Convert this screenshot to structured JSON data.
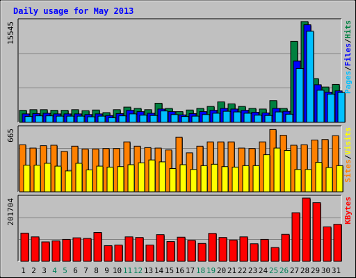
{
  "chart_data": {
    "type": "bar",
    "title": "Daily usage for May 2013",
    "categories": [
      "1",
      "2",
      "3",
      "4",
      "5",
      "6",
      "7",
      "8",
      "9",
      "10",
      "11",
      "12",
      "13",
      "14",
      "15",
      "16",
      "17",
      "18",
      "19",
      "20",
      "21",
      "22",
      "23",
      "24",
      "25",
      "26",
      "27",
      "28",
      "29",
      "30",
      "31"
    ],
    "weekend_days": [
      "4",
      "5",
      "11",
      "12",
      "18",
      "19",
      "25",
      "26"
    ],
    "panels": [
      {
        "id": "hits",
        "ymax_label": "15545",
        "ymax": 15545,
        "series": [
          {
            "name": "Hits",
            "color": "#008040",
            "values": [
              1850,
              1950,
              1950,
              1850,
              1850,
              1950,
              1800,
              1900,
              1500,
              1950,
              2350,
              2150,
              1950,
              2950,
              2150,
              1650,
              1900,
              2150,
              2450,
              3150,
              2850,
              2450,
              2150,
              2050,
              3350,
              2150,
              12500,
              15545,
              6750,
              5450,
              5850
            ]
          },
          {
            "name": "Files",
            "color": "#0000ff",
            "values": [
              1300,
              1350,
              1400,
              1300,
              1300,
              1300,
              1200,
              1300,
              1050,
              1350,
              1850,
              1650,
              1400,
              2050,
              1650,
              1150,
              1350,
              1650,
              1850,
              2150,
              2050,
              1850,
              1550,
              1450,
              2150,
              1700,
              9450,
              15050,
              5800,
              4650,
              4850
            ]
          },
          {
            "name": "Pages",
            "color": "#00c0ff",
            "values": [
              900,
              1000,
              1000,
              950,
              950,
              950,
              850,
              950,
              700,
              1000,
              1300,
              1100,
              1050,
              1750,
              1200,
              900,
              950,
              1200,
              1400,
              1700,
              1600,
              1400,
              1100,
              1050,
              1600,
              1250,
              8300,
              14050,
              4950,
              4350,
              4600
            ]
          }
        ],
        "legend": [
          "Pages",
          "/",
          "Files",
          "/",
          "Hits"
        ]
      },
      {
        "id": "visits",
        "ymax_label": "665",
        "ymax": 665,
        "series": [
          {
            "name": "Sites",
            "color": "#ff8000",
            "values": [
              495,
              460,
              485,
              490,
              425,
              480,
              450,
              450,
              455,
              455,
              525,
              480,
              465,
              460,
              440,
              575,
              410,
              480,
              525,
              525,
              525,
              460,
              455,
              525,
              655,
              595,
              490,
              495,
              545,
              550,
              590
            ]
          },
          {
            "name": "Visits",
            "color": "#ffff00",
            "values": [
              280,
              280,
              300,
              270,
              220,
              300,
              230,
              270,
              260,
              265,
              285,
              305,
              335,
              315,
              245,
              285,
              235,
              275,
              290,
              265,
              260,
              275,
              275,
              390,
              460,
              435,
              235,
              235,
              310,
              255,
              275
            ]
          }
        ],
        "legend": [
          "Sites",
          "/",
          "Visits"
        ]
      },
      {
        "id": "kbytes",
        "ymax_label": "201704",
        "ymax": 201704,
        "series": [
          {
            "name": "KBytes",
            "color": "#ff0000",
            "values": [
              90000,
              78000,
              62000,
              65000,
              70000,
              75000,
              73000,
              92000,
              50000,
              52000,
              78000,
              76000,
              52000,
              85000,
              63000,
              77000,
              67000,
              57000,
              89000,
              76000,
              68000,
              78000,
              56000,
              70000,
              44000,
              86000,
              155000,
              201704,
              187000,
              110000,
              118000
            ]
          }
        ],
        "legend": [
          "KBytes"
        ]
      }
    ]
  }
}
